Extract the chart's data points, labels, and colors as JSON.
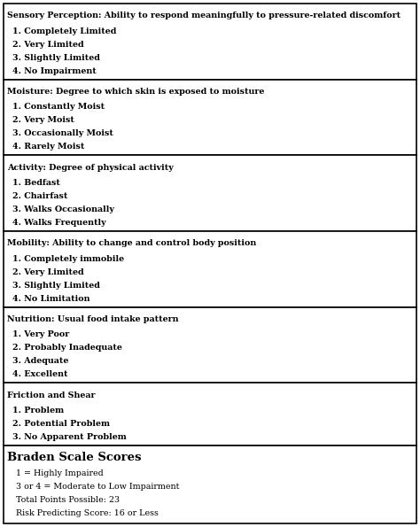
{
  "sections": [
    {
      "header": "Sensory Perception: Ability to respond meaningfully to pressure-related discomfort",
      "items": [
        "1. Completely Limited",
        "2. Very Limited",
        "3. Slightly Limited",
        "4. No Impairment"
      ],
      "header_bold": true,
      "items_bold": true,
      "last_section": false
    },
    {
      "header": "Moisture: Degree to which skin is exposed to moisture",
      "items": [
        "1. Constantly Moist",
        "2. Very Moist",
        "3. Occasionally Moist",
        "4. Rarely Moist"
      ],
      "header_bold": true,
      "items_bold": true,
      "last_section": false
    },
    {
      "header": "Activity: Degree of physical activity",
      "items": [
        "1. Bedfast",
        "2. Chairfast",
        "3. Walks Occasionally",
        "4. Walks Frequently"
      ],
      "header_bold": true,
      "items_bold": true,
      "last_section": false
    },
    {
      "header": "Mobility: Ability to change and control body position",
      "items": [
        "1. Completely immobile",
        "2. Very Limited",
        "3. Slightly Limited",
        "4. No Limitation"
      ],
      "header_bold": true,
      "items_bold": true,
      "last_section": false
    },
    {
      "header": "Nutrition: Usual food intake pattern",
      "items": [
        "1. Very Poor",
        "2. Probably Inadequate",
        "3. Adequate",
        "4. Excellent"
      ],
      "header_bold": true,
      "items_bold": true,
      "last_section": false
    },
    {
      "header": "Friction and Shear",
      "items": [
        "1. Problem",
        "2. Potential Problem",
        "3. No Apparent Problem"
      ],
      "header_bold": true,
      "items_bold": true,
      "last_section": false
    },
    {
      "header": "Braden Scale Scores",
      "items": [
        "1 = Highly Impaired",
        "3 or 4 = Moderate to Low Impairment",
        "Total Points Possible: 23",
        "Risk Predicting Score: 16 or Less"
      ],
      "header_bold": true,
      "items_bold": false,
      "last_section": true
    }
  ],
  "bg_color": "#ffffff",
  "border_color": "#000000",
  "text_color": "#000000",
  "header_fontsize": 6.8,
  "item_fontsize": 6.8,
  "last_header_fontsize": 9.5,
  "last_item_fontsize": 6.8,
  "fig_width": 4.74,
  "fig_height": 5.95,
  "dpi": 100
}
